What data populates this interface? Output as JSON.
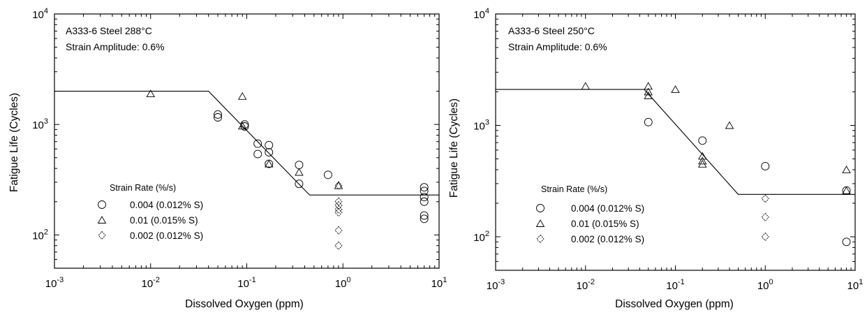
{
  "chart_data": [
    {
      "type": "scatter",
      "title": "A333-6 Steel 288°C",
      "subtitle": "Strain Amplitude: 0.6%",
      "xlabel": "Dissolved Oxygen (ppm)",
      "ylabel": "Fatigue Life (Cycles)",
      "xscale": "log",
      "yscale": "log",
      "xlim": [
        0.001,
        10
      ],
      "ylim": [
        50,
        10000
      ],
      "x_ticks": [
        {
          "v": 0.001,
          "b": "10",
          "e": "-3"
        },
        {
          "v": 0.01,
          "b": "10",
          "e": "-2"
        },
        {
          "v": 0.1,
          "b": "10",
          "e": "-1"
        },
        {
          "v": 1,
          "b": "10",
          "e": "0"
        },
        {
          "v": 10,
          "b": "10",
          "e": "1"
        }
      ],
      "y_ticks": [
        {
          "v": 100,
          "b": "10",
          "e": "2"
        },
        {
          "v": 1000,
          "b": "10",
          "e": "3"
        },
        {
          "v": 10000,
          "b": "10",
          "e": "4"
        }
      ],
      "grid": false,
      "legend_title": "Strain Rate (%/s)",
      "legend_placement": "lower-left",
      "series": [
        {
          "name": "0.004 (0.012% S)",
          "marker": "circle",
          "points": [
            [
              0.05,
              1230
            ],
            [
              0.05,
              1160
            ],
            [
              0.095,
              1000
            ],
            [
              0.095,
              960
            ],
            [
              0.13,
              670
            ],
            [
              0.13,
              540
            ],
            [
              0.17,
              650
            ],
            [
              0.17,
              560
            ],
            [
              0.17,
              440
            ],
            [
              0.35,
              430
            ],
            [
              0.35,
              290
            ],
            [
              0.7,
              350
            ],
            [
              7,
              270
            ],
            [
              7,
              250
            ],
            [
              7,
              220
            ],
            [
              7,
              200
            ],
            [
              7,
              150
            ],
            [
              7,
              140
            ]
          ]
        },
        {
          "name": "0.01 (0.015% S)",
          "marker": "triangle",
          "points": [
            [
              0.01,
              1900
            ],
            [
              0.09,
              1800
            ],
            [
              0.09,
              970
            ],
            [
              0.17,
              440
            ],
            [
              0.35,
              370
            ],
            [
              0.9,
              280
            ]
          ]
        },
        {
          "name": "0.002 (0.012% S)",
          "marker": "diamond",
          "points": [
            [
              0.9,
              280
            ],
            [
              0.9,
              200
            ],
            [
              0.9,
              185
            ],
            [
              0.9,
              170
            ],
            [
              0.9,
              160
            ],
            [
              0.9,
              110
            ],
            [
              0.9,
              80
            ]
          ]
        }
      ],
      "fit_line": [
        [
          0.001,
          2000
        ],
        [
          0.04,
          2000
        ],
        [
          0.45,
          230
        ],
        [
          10,
          230
        ]
      ]
    },
    {
      "type": "scatter",
      "title": "A333-6 Steel 250°C",
      "subtitle": "Strain Amplitude: 0.6%",
      "xlabel": "Dissolved Oxygen (ppm)",
      "ylabel": "Fatigue Life (Cycles)",
      "xscale": "log",
      "yscale": "log",
      "xlim": [
        0.001,
        10
      ],
      "ylim": [
        50,
        10000
      ],
      "x_ticks": [
        {
          "v": 0.001,
          "b": "10",
          "e": "-3"
        },
        {
          "v": 0.01,
          "b": "10",
          "e": "-2"
        },
        {
          "v": 0.1,
          "b": "10",
          "e": "-1"
        },
        {
          "v": 1,
          "b": "10",
          "e": "0"
        },
        {
          "v": 10,
          "b": "10",
          "e": "1"
        }
      ],
      "y_ticks": [
        {
          "v": 100,
          "b": "10",
          "e": "2"
        },
        {
          "v": 1000,
          "b": "10",
          "e": "3"
        },
        {
          "v": 10000,
          "b": "10",
          "e": "4"
        }
      ],
      "grid": false,
      "legend_title": "Strain Rate (%/s)",
      "legend_placement": "lower-left",
      "series": [
        {
          "name": "0.004 (0.012% S)",
          "marker": "circle",
          "points": [
            [
              0.05,
              1070
            ],
            [
              0.2,
              730
            ],
            [
              1,
              430
            ],
            [
              8,
              260
            ],
            [
              8,
              90
            ]
          ]
        },
        {
          "name": "0.01  (0.015% S)",
          "marker": "triangle",
          "points": [
            [
              0.01,
              2250
            ],
            [
              0.05,
              2250
            ],
            [
              0.05,
              2000
            ],
            [
              0.05,
              1850
            ],
            [
              0.1,
              2100
            ],
            [
              0.2,
              530
            ],
            [
              0.2,
              480
            ],
            [
              0.2,
              450
            ],
            [
              0.4,
              1000
            ],
            [
              8,
              400
            ],
            [
              8,
              260
            ]
          ]
        },
        {
          "name": "0.002 (0.012% S)",
          "marker": "diamond",
          "points": [
            [
              1,
              220
            ],
            [
              1,
              150
            ],
            [
              1,
              100
            ]
          ]
        }
      ],
      "fit_line": [
        [
          0.001,
          2100
        ],
        [
          0.045,
          2100
        ],
        [
          0.5,
          240
        ],
        [
          10,
          240
        ]
      ]
    }
  ]
}
